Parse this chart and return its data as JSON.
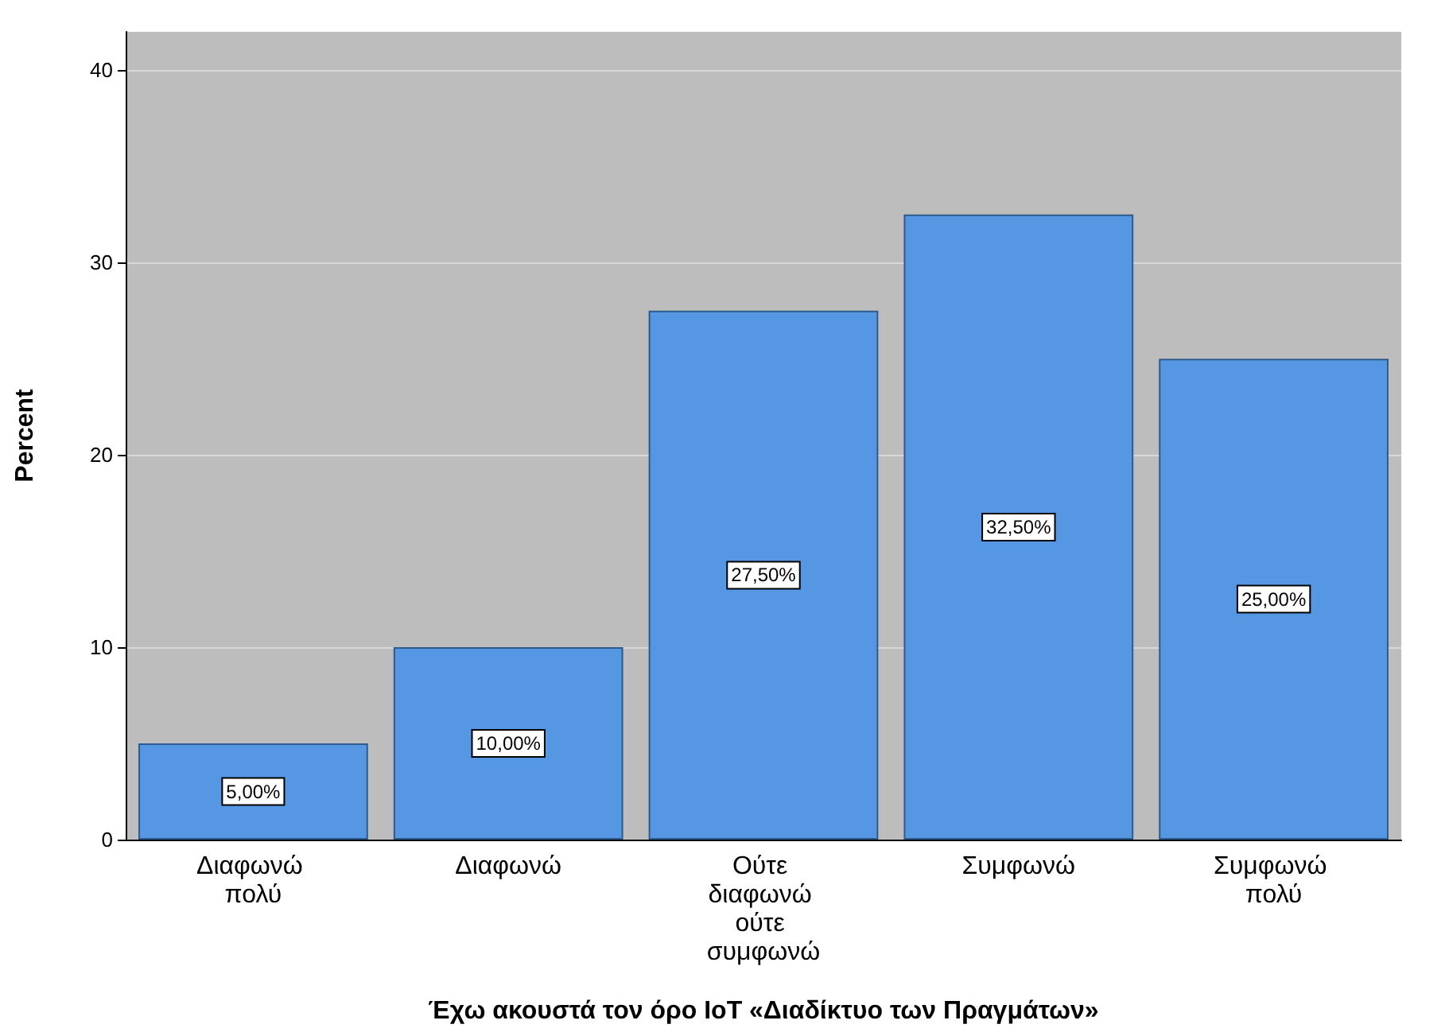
{
  "chart_data": {
    "type": "bar",
    "categories": [
      "Διαφωνώ πολύ",
      "Διαφωνώ",
      "Ούτε διαφωνώ ούτε συμφωνώ",
      "Συμφωνώ",
      "Συμφωνώ πολύ"
    ],
    "values": [
      5,
      10,
      27.5,
      32.5,
      25
    ],
    "value_labels": [
      "5,00%",
      "10,00%",
      "27,50%",
      "32,50%",
      "25,00%"
    ],
    "color": "#5597e3",
    "xlabel": "Έχω ακουστά τον όρο IoT «Διαδίκτυο των Πραγμάτων»",
    "ylabel": "Percent",
    "ylim": [
      0,
      42
    ],
    "yticks": [
      0,
      10,
      20,
      30,
      40
    ],
    "grid": "y"
  }
}
